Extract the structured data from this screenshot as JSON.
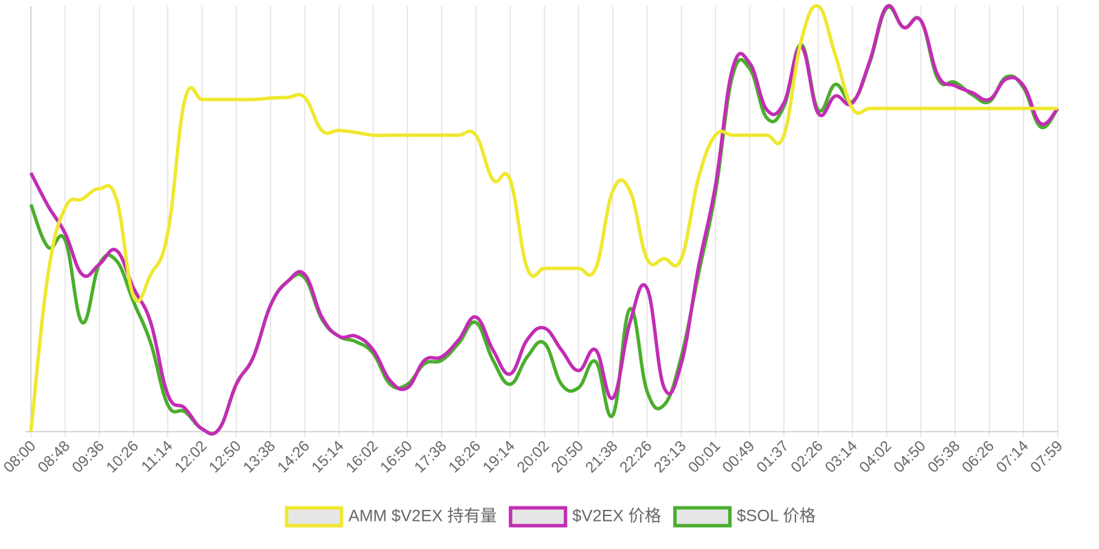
{
  "chart_data": {
    "type": "line",
    "categories": [
      "08:00",
      null,
      "08:48",
      null,
      "09:36",
      null,
      "10:26",
      null,
      "11:14",
      null,
      "12:02",
      null,
      "12:50",
      null,
      "13:38",
      null,
      "14:26",
      null,
      "15:14",
      null,
      "16:02",
      null,
      "16:50",
      null,
      "17:38",
      null,
      "18:26",
      null,
      "19:14",
      null,
      "20:02",
      null,
      "20:50",
      null,
      "21:38",
      null,
      "22:26",
      null,
      "23:13",
      null,
      "00:01",
      null,
      "00:49",
      null,
      "01:37",
      null,
      "02:26",
      null,
      "03:14",
      null,
      "04:02",
      null,
      "04:50",
      null,
      "05:38",
      null,
      "06:26",
      null,
      "07:14",
      null,
      "07:59"
    ],
    "series": [
      {
        "name": "AMM $V2EX 持有量",
        "color": "#efe82f",
        "values": [
          0,
          229,
          326,
          339,
          354,
          339,
          197,
          229,
          290,
          484,
          484,
          484,
          484,
          484,
          486,
          487,
          487,
          439,
          439,
          436,
          432,
          432,
          432,
          432,
          432,
          432,
          432,
          367,
          367,
          238,
          238,
          238,
          238,
          238,
          351,
          351,
          252,
          252,
          252,
          369,
          432,
          432,
          432,
          432,
          432,
          569,
          620,
          549,
          471,
          471,
          471,
          471,
          471,
          471,
          471,
          471,
          471,
          471,
          471,
          471,
          471
        ]
      },
      {
        "name": "$V2EX 价格",
        "color": "#c22db4",
        "values": [
          377,
          329,
          289,
          229,
          244,
          264,
          209,
          159,
          54,
          34,
          4,
          4,
          69,
          109,
          184,
          219,
          229,
          167,
          139,
          139,
          119,
          74,
          64,
          104,
          109,
          134,
          167,
          119,
          84,
          134,
          151,
          119,
          89,
          119,
          49,
          159,
          209,
          64,
          99,
          239,
          359,
          529,
          537,
          469,
          479,
          561,
          464,
          489,
          479,
          539,
          619,
          589,
          599,
          519,
          504,
          494,
          484,
          514,
          504,
          449,
          471
        ]
      },
      {
        "name": "$SOL 价格",
        "color": "#4aae2c",
        "values": [
          331,
          269,
          279,
          159,
          244,
          249,
          189,
          129,
          39,
          29,
          4,
          4,
          69,
          109,
          184,
          219,
          224,
          164,
          139,
          131,
          114,
          69,
          69,
          99,
          104,
          129,
          159,
          104,
          69,
          109,
          129,
          69,
          64,
          102,
          24,
          179,
          59,
          39,
          109,
          229,
          349,
          519,
          529,
          457,
          474,
          564,
          469,
          506,
          481,
          537,
          617,
          589,
          599,
          514,
          509,
          491,
          481,
          517,
          501,
          444,
          471
        ]
      }
    ],
    "ylim": [
      0,
      620
    ],
    "grid": true
  }
}
